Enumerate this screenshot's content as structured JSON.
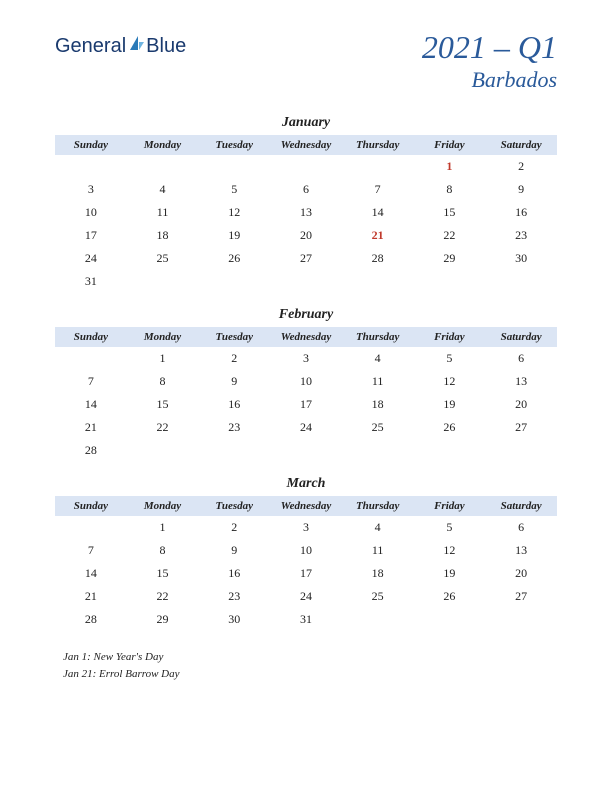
{
  "logo": {
    "part1": "General",
    "part2": "Blue"
  },
  "quarter": "2021 – Q1",
  "region": "Barbados",
  "day_headers": [
    "Sunday",
    "Monday",
    "Tuesday",
    "Wednesday",
    "Thursday",
    "Friday",
    "Saturday"
  ],
  "colors": {
    "header_bg": "#dbe5f4",
    "title": "#2a5a9a",
    "holiday": "#c0392b",
    "text": "#222222",
    "background": "#ffffff"
  },
  "months": [
    {
      "name": "January",
      "weeks": [
        [
          "",
          "",
          "",
          "",
          "",
          "1",
          "2"
        ],
        [
          "3",
          "4",
          "5",
          "6",
          "7",
          "8",
          "9"
        ],
        [
          "10",
          "11",
          "12",
          "13",
          "14",
          "15",
          "16"
        ],
        [
          "17",
          "18",
          "19",
          "20",
          "21",
          "22",
          "23"
        ],
        [
          "24",
          "25",
          "26",
          "27",
          "28",
          "29",
          "30"
        ],
        [
          "31",
          "",
          "",
          "",
          "",
          "",
          ""
        ]
      ],
      "holidays": [
        "1",
        "21"
      ]
    },
    {
      "name": "February",
      "weeks": [
        [
          "",
          "1",
          "2",
          "3",
          "4",
          "5",
          "6"
        ],
        [
          "7",
          "8",
          "9",
          "10",
          "11",
          "12",
          "13"
        ],
        [
          "14",
          "15",
          "16",
          "17",
          "18",
          "19",
          "20"
        ],
        [
          "21",
          "22",
          "23",
          "24",
          "25",
          "26",
          "27"
        ],
        [
          "28",
          "",
          "",
          "",
          "",
          "",
          ""
        ]
      ],
      "holidays": []
    },
    {
      "name": "March",
      "weeks": [
        [
          "",
          "1",
          "2",
          "3",
          "4",
          "5",
          "6"
        ],
        [
          "7",
          "8",
          "9",
          "10",
          "11",
          "12",
          "13"
        ],
        [
          "14",
          "15",
          "16",
          "17",
          "18",
          "19",
          "20"
        ],
        [
          "21",
          "22",
          "23",
          "24",
          "25",
          "26",
          "27"
        ],
        [
          "28",
          "29",
          "30",
          "31",
          "",
          "",
          ""
        ]
      ],
      "holidays": []
    }
  ],
  "holiday_notes": [
    "Jan 1: New Year's Day",
    "Jan 21: Errol Barrow Day"
  ]
}
